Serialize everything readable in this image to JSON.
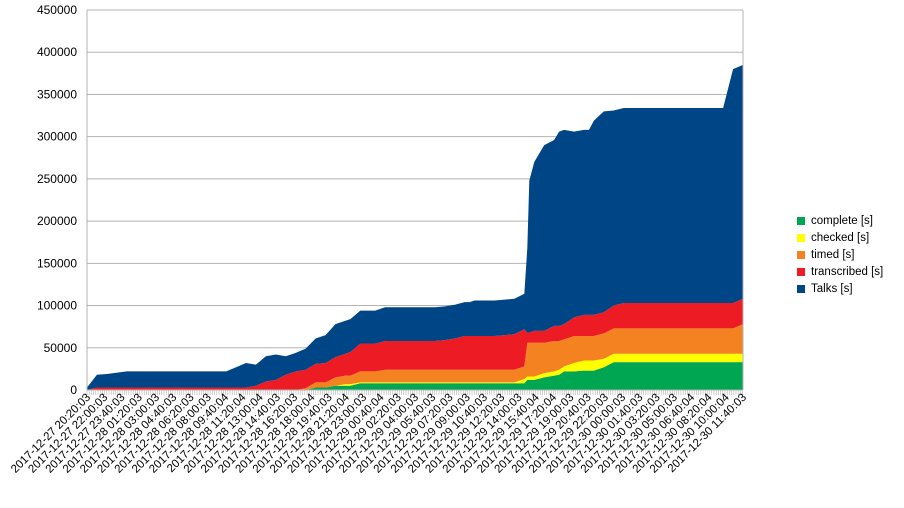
{
  "chart_data": {
    "type": "area",
    "stacked": true,
    "ylim": [
      0,
      450000
    ],
    "yticks": [
      0,
      50000,
      100000,
      150000,
      200000,
      250000,
      300000,
      350000,
      400000,
      450000
    ],
    "grid": true,
    "legend_position": "right",
    "x_tick_labels": [
      "2017-12-27 20:20:03",
      "2017-12-27 22:00:03",
      "2017-12-27 23:40:03",
      "2017-12-28 01:20:03",
      "2017-12-28 03:00:03",
      "2017-12-28 04:40:03",
      "2017-12-28 06:20:03",
      "2017-12-28 08:00:03",
      "2017-12-28 09:40:04",
      "2017-12-28 11:20:04",
      "2017-12-28 13:00:04",
      "2017-12-28 14:40:03",
      "2017-12-28 16:20:03",
      "2017-12-28 18:00:04",
      "2017-12-28 19:40:03",
      "2017-12-28 21:20:04",
      "2017-12-28 23:00:03",
      "2017-12-29 00:40:04",
      "2017-12-29 02:20:03",
      "2017-12-29 04:00:03",
      "2017-12-29 05:40:03",
      "2017-12-29 07:20:03",
      "2017-12-29 09:00:03",
      "2017-12-29 10:40:03",
      "2017-12-29 12:20:03",
      "2017-12-29 14:00:03",
      "2017-12-29 15:40:04",
      "2017-12-29 17:20:04",
      "2017-12-29 19:00:03",
      "2017-12-29 20:40:03",
      "2017-12-29 22:20:03",
      "2017-12-30 00:00:03",
      "2017-12-30 01:40:03",
      "2017-12-30 03:20:03",
      "2017-12-30 05:00:03",
      "2017-12-30 06:40:04",
      "2017-12-30 08:20:04",
      "2017-12-30 10:00:04",
      "2017-12-30 11:40:03"
    ],
    "x": [
      0,
      10,
      20,
      40,
      60,
      80,
      100,
      120,
      140,
      150,
      160,
      170,
      180,
      190,
      200,
      210,
      220,
      230,
      240,
      250,
      260,
      265,
      275,
      280,
      290,
      300,
      310,
      320,
      330,
      340,
      350,
      360,
      370,
      380,
      385,
      390,
      410,
      430,
      440,
      443,
      445,
      450,
      460,
      470,
      475,
      480,
      490,
      500,
      505,
      510,
      520,
      530,
      540,
      545,
      550,
      560,
      570,
      580,
      590,
      600,
      610,
      620,
      640,
      650,
      660
    ],
    "series": [
      {
        "name": "complete [s]",
        "color": "#00a651",
        "values": [
          0,
          0,
          0,
          0,
          0,
          0,
          0,
          0,
          0,
          0,
          0,
          0,
          0,
          0,
          0,
          0,
          0,
          3000,
          3000,
          5000,
          5000,
          5000,
          8000,
          8000,
          8000,
          8000,
          8000,
          8000,
          8000,
          8000,
          8000,
          8000,
          8000,
          8000,
          8000,
          8000,
          8000,
          8000,
          8000,
          12000,
          12000,
          12000,
          15000,
          17000,
          18000,
          22000,
          22000,
          23000,
          23000,
          23000,
          27000,
          33000,
          33000,
          33000,
          33000,
          33000,
          33000,
          33000,
          33000,
          33000,
          33000,
          33000,
          33000,
          33000,
          33000
        ]
      },
      {
        "name": "checked [s]",
        "color": "#ffff00",
        "values": [
          0,
          0,
          0,
          0,
          0,
          0,
          0,
          0,
          0,
          0,
          0,
          0,
          0,
          0,
          0,
          0,
          0,
          0,
          0,
          0,
          2000,
          2000,
          1000,
          1000,
          1000,
          1000,
          1000,
          1000,
          1000,
          1000,
          1000,
          1000,
          1000,
          1000,
          1000,
          1000,
          1000,
          1000,
          5000,
          4000,
          4000,
          4000,
          5000,
          5000,
          6000,
          6000,
          10000,
          12000,
          12000,
          12000,
          10000,
          10000,
          10000,
          10000,
          10000,
          10000,
          10000,
          10000,
          10000,
          10000,
          10000,
          10000,
          10000,
          10000,
          10000
        ]
      },
      {
        "name": "timed [s]",
        "color": "#f58220",
        "values": [
          0,
          0,
          0,
          0,
          0,
          0,
          0,
          0,
          0,
          0,
          0,
          0,
          0,
          0,
          0,
          0,
          2000,
          6000,
          6000,
          10000,
          10000,
          10000,
          13000,
          13000,
          13000,
          15000,
          15000,
          15000,
          15000,
          15000,
          15000,
          15000,
          15000,
          15000,
          15000,
          15000,
          15000,
          15000,
          15000,
          40000,
          40000,
          40000,
          36000,
          36000,
          34000,
          32000,
          32000,
          29000,
          29000,
          29000,
          30000,
          30000,
          30000,
          30000,
          30000,
          30000,
          30000,
          30000,
          30000,
          30000,
          30000,
          30000,
          30000,
          30000,
          35000
        ]
      },
      {
        "name": "transcribed [s]",
        "color": "#ed1c24",
        "values": [
          0,
          3000,
          3000,
          3000,
          3000,
          3000,
          3000,
          3000,
          3000,
          3000,
          3000,
          5000,
          10000,
          12000,
          18000,
          22000,
          22000,
          22000,
          23000,
          24000,
          26000,
          28000,
          33000,
          33000,
          33000,
          34000,
          34000,
          34000,
          34000,
          34000,
          34000,
          35000,
          37000,
          40000,
          40000,
          40000,
          40000,
          42000,
          44000,
          12000,
          12000,
          14000,
          14000,
          18000,
          18000,
          18000,
          22000,
          25000,
          25000,
          25000,
          25000,
          27000,
          30000,
          30000,
          30000,
          30000,
          30000,
          30000,
          30000,
          30000,
          30000,
          30000,
          30000,
          30000,
          30000
        ]
      },
      {
        "name": "Talks [s]",
        "color": "#004586",
        "values": [
          3000,
          15000,
          16000,
          19000,
          19000,
          19000,
          19000,
          19000,
          19000,
          24000,
          29000,
          25000,
          30000,
          30000,
          22000,
          22000,
          25000,
          30000,
          33000,
          39000,
          39000,
          39000,
          39000,
          39000,
          39000,
          40000,
          40000,
          40000,
          40000,
          40000,
          40000,
          40000,
          40000,
          40000,
          40000,
          42000,
          42000,
          42000,
          42000,
          100000,
          180000,
          200000,
          220000,
          220000,
          230000,
          230000,
          220000,
          219000,
          219000,
          230000,
          238000,
          231000,
          231000,
          231000,
          231000,
          231000,
          231000,
          231000,
          231000,
          231000,
          231000,
          231000,
          231000,
          277000,
          277000
        ]
      }
    ]
  }
}
